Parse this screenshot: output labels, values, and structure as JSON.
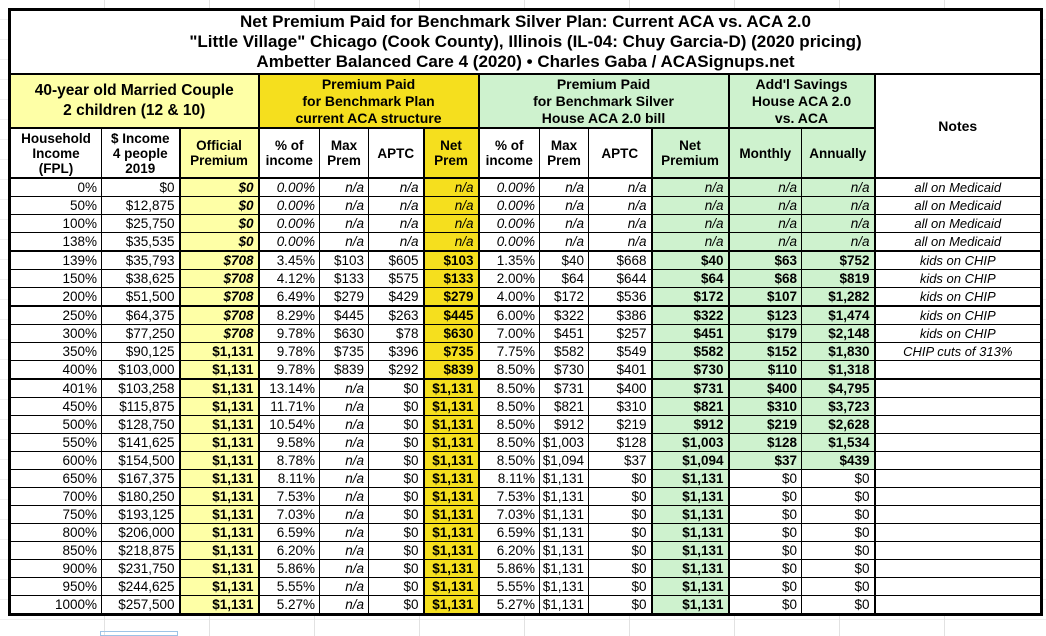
{
  "title": {
    "line1": "Net Premium Paid for Benchmark Silver Plan: Current ACA vs. ACA 2.0",
    "line2": "\"Little Village\" Chicago (Cook County), Illinois (IL-04: Chuy Garcia-D) (2020 pricing)",
    "line3": "Ambetter Balanced Care 4 (2020) • Charles Gaba / ACASignups.net"
  },
  "groups": {
    "household": "40-year old Married Couple\n2 children (12 & 10)",
    "current_aca": "Premium Paid\nfor Benchmark Plan\ncurrent ACA structure",
    "aca2": "Premium Paid\nfor Benchmark Silver\nHouse ACA 2.0 bill",
    "savings": "Add'l Savings\nHouse ACA 2.0\nvs. ACA",
    "notes": "Notes"
  },
  "colors": {
    "light_yellow": "#FEFFA6",
    "bright_yellow": "#F5DF1E",
    "light_green": "#CEF2CE",
    "grid_border": "#000000",
    "active_cell_blue": "#9DC3E6"
  },
  "chart_data": {
    "type": "table",
    "columns": [
      "Household\nIncome\n(FPL)",
      "$ Income\n4 people\n2019",
      "Official\nPremium",
      "% of\nincome",
      "Max\nPrem",
      "APTC",
      "Net\nPrem",
      "% of\nincome",
      "Max\nPrem",
      "APTC",
      "Net\nPremium",
      "Monthly",
      "Annually",
      "Notes"
    ],
    "rows": [
      [
        "0%",
        "$0",
        "$0",
        "0.00%",
        "n/a",
        "n/a",
        "n/a",
        "0.00%",
        "n/a",
        "n/a",
        "n/a",
        "n/a",
        "n/a",
        "all on Medicaid"
      ],
      [
        "50%",
        "$12,875",
        "$0",
        "0.00%",
        "n/a",
        "n/a",
        "n/a",
        "0.00%",
        "n/a",
        "n/a",
        "n/a",
        "n/a",
        "n/a",
        "all on Medicaid"
      ],
      [
        "100%",
        "$25,750",
        "$0",
        "0.00%",
        "n/a",
        "n/a",
        "n/a",
        "0.00%",
        "n/a",
        "n/a",
        "n/a",
        "n/a",
        "n/a",
        "all on Medicaid"
      ],
      [
        "138%",
        "$35,535",
        "$0",
        "0.00%",
        "n/a",
        "n/a",
        "n/a",
        "0.00%",
        "n/a",
        "n/a",
        "n/a",
        "n/a",
        "n/a",
        "all on Medicaid"
      ],
      [
        "139%",
        "$35,793",
        "$708",
        "3.45%",
        "$103",
        "$605",
        "$103",
        "1.35%",
        "$40",
        "$668",
        "$40",
        "$63",
        "$752",
        "kids on CHIP"
      ],
      [
        "150%",
        "$38,625",
        "$708",
        "4.12%",
        "$133",
        "$575",
        "$133",
        "2.00%",
        "$64",
        "$644",
        "$64",
        "$68",
        "$819",
        "kids on CHIP"
      ],
      [
        "200%",
        "$51,500",
        "$708",
        "6.49%",
        "$279",
        "$429",
        "$279",
        "4.00%",
        "$172",
        "$536",
        "$172",
        "$107",
        "$1,282",
        "kids on CHIP"
      ],
      [
        "250%",
        "$64,375",
        "$708",
        "8.29%",
        "$445",
        "$263",
        "$445",
        "6.00%",
        "$322",
        "$386",
        "$322",
        "$123",
        "$1,474",
        "kids on CHIP"
      ],
      [
        "300%",
        "$77,250",
        "$708",
        "9.78%",
        "$630",
        "$78",
        "$630",
        "7.00%",
        "$451",
        "$257",
        "$451",
        "$179",
        "$2,148",
        "kids on CHIP"
      ],
      [
        "350%",
        "$90,125",
        "$1,131",
        "9.78%",
        "$735",
        "$396",
        "$735",
        "7.75%",
        "$582",
        "$549",
        "$582",
        "$152",
        "$1,830",
        "CHIP cuts of 313%"
      ],
      [
        "400%",
        "$103,000",
        "$1,131",
        "9.78%",
        "$839",
        "$292",
        "$839",
        "8.50%",
        "$730",
        "$401",
        "$730",
        "$110",
        "$1,318",
        ""
      ],
      [
        "401%",
        "$103,258",
        "$1,131",
        "13.14%",
        "n/a",
        "$0",
        "$1,131",
        "8.50%",
        "$731",
        "$400",
        "$731",
        "$400",
        "$4,795",
        ""
      ],
      [
        "450%",
        "$115,875",
        "$1,131",
        "11.71%",
        "n/a",
        "$0",
        "$1,131",
        "8.50%",
        "$821",
        "$310",
        "$821",
        "$310",
        "$3,723",
        ""
      ],
      [
        "500%",
        "$128,750",
        "$1,131",
        "10.54%",
        "n/a",
        "$0",
        "$1,131",
        "8.50%",
        "$912",
        "$219",
        "$912",
        "$219",
        "$2,628",
        ""
      ],
      [
        "550%",
        "$141,625",
        "$1,131",
        "9.58%",
        "n/a",
        "$0",
        "$1,131",
        "8.50%",
        "$1,003",
        "$128",
        "$1,003",
        "$128",
        "$1,534",
        ""
      ],
      [
        "600%",
        "$154,500",
        "$1,131",
        "8.78%",
        "n/a",
        "$0",
        "$1,131",
        "8.50%",
        "$1,094",
        "$37",
        "$1,094",
        "$37",
        "$439",
        ""
      ],
      [
        "650%",
        "$167,375",
        "$1,131",
        "8.11%",
        "n/a",
        "$0",
        "$1,131",
        "8.11%",
        "$1,131",
        "$0",
        "$1,131",
        "$0",
        "$0",
        ""
      ],
      [
        "700%",
        "$180,250",
        "$1,131",
        "7.53%",
        "n/a",
        "$0",
        "$1,131",
        "7.53%",
        "$1,131",
        "$0",
        "$1,131",
        "$0",
        "$0",
        ""
      ],
      [
        "750%",
        "$193,125",
        "$1,131",
        "7.03%",
        "n/a",
        "$0",
        "$1,131",
        "7.03%",
        "$1,131",
        "$0",
        "$1,131",
        "$0",
        "$0",
        ""
      ],
      [
        "800%",
        "$206,000",
        "$1,131",
        "6.59%",
        "n/a",
        "$0",
        "$1,131",
        "6.59%",
        "$1,131",
        "$0",
        "$1,131",
        "$0",
        "$0",
        ""
      ],
      [
        "850%",
        "$218,875",
        "$1,131",
        "6.20%",
        "n/a",
        "$0",
        "$1,131",
        "6.20%",
        "$1,131",
        "$0",
        "$1,131",
        "$0",
        "$0",
        ""
      ],
      [
        "900%",
        "$231,750",
        "$1,131",
        "5.86%",
        "n/a",
        "$0",
        "$1,131",
        "5.86%",
        "$1,131",
        "$0",
        "$1,131",
        "$0",
        "$0",
        ""
      ],
      [
        "950%",
        "$244,625",
        "$1,131",
        "5.55%",
        "n/a",
        "$0",
        "$1,131",
        "5.55%",
        "$1,131",
        "$0",
        "$1,131",
        "$0",
        "$0",
        ""
      ],
      [
        "1000%",
        "$257,500",
        "$1,131",
        "5.27%",
        "n/a",
        "$0",
        "$1,131",
        "5.27%",
        "$1,131",
        "$0",
        "$1,131",
        "$0",
        "$0",
        ""
      ]
    ],
    "layout": {
      "thick_border_after_rows": [
        3,
        6,
        10
      ],
      "grid": true,
      "column_group_spans": {
        "household": 3,
        "current_aca": 4,
        "aca2": 4,
        "savings": 2,
        "notes": 1
      }
    }
  }
}
